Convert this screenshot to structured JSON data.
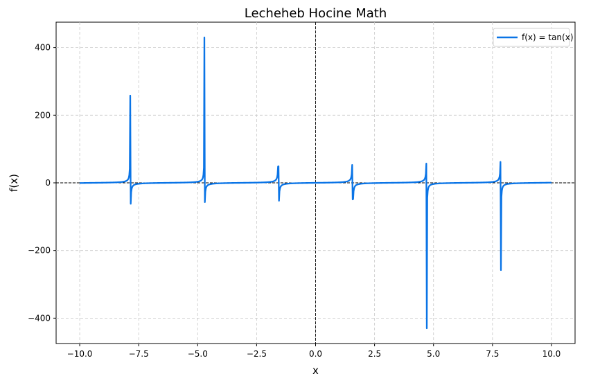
{
  "chart_data": {
    "type": "line",
    "title": "Lecheheb Hocine Math",
    "xlabel": "x",
    "ylabel": "f(x)",
    "xlim": [
      -11,
      11
    ],
    "ylim": [
      -475,
      475
    ],
    "x_ticks": [
      -10.0,
      -7.5,
      -5.0,
      -2.5,
      0.0,
      2.5,
      5.0,
      7.5,
      10.0
    ],
    "x_tick_labels": [
      "−10.0",
      "−7.5",
      "−5.0",
      "−2.5",
      "0.0",
      "2.5",
      "5.0",
      "7.5",
      "10.0"
    ],
    "y_ticks": [
      -400,
      -200,
      0,
      200,
      400
    ],
    "y_tick_labels": [
      "−400",
      "−200",
      "0",
      "200",
      "400"
    ],
    "grid": true,
    "reference_lines": [
      "x = 0",
      "y = 0"
    ],
    "legend_position": "top-right",
    "series": [
      {
        "name": "f(x) = tan(x)",
        "function": "tan(x)",
        "color": "#0a74e6",
        "x_range": [
          -10,
          10
        ],
        "samples": 1000,
        "asymptote_peaks": [
          {
            "x": -7.854,
            "max": 258,
            "min": -62
          },
          {
            "x": -4.712,
            "max": 430,
            "min": -57
          },
          {
            "x": -1.571,
            "max": 49,
            "min": -53
          },
          {
            "x": 1.571,
            "max": 53,
            "min": -49
          },
          {
            "x": 4.712,
            "max": 57,
            "min": -430
          },
          {
            "x": 7.854,
            "max": 62,
            "min": -258
          }
        ]
      }
    ]
  }
}
